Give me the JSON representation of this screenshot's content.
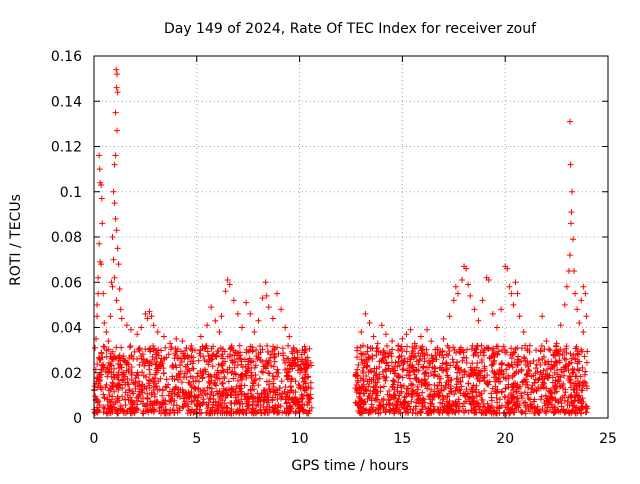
{
  "chart_data": {
    "type": "scatter",
    "title": "Day 149 of 2024, Rate Of TEC Index for receiver zouf",
    "xlabel": "GPS time / hours",
    "ylabel": "ROTI / TECUs",
    "xlim": [
      0,
      25
    ],
    "ylim": [
      0,
      0.16
    ],
    "x_ticks": [
      0,
      5,
      10,
      15,
      20,
      25
    ],
    "y_ticks": [
      0,
      0.02,
      0.04,
      0.06,
      0.08,
      0.1,
      0.12,
      0.14,
      0.16
    ],
    "x_tick_labels": [
      "0",
      "5",
      "10",
      "15",
      "20",
      "25"
    ],
    "y_tick_labels": [
      "0",
      "0.02",
      "0.04",
      "0.06",
      "0.08",
      "0.1",
      "0.12",
      "0.14",
      "0.16"
    ],
    "grid": true,
    "marker": "+",
    "color": "#ff0000",
    "series": [
      {
        "name": "ROTI",
        "points": [
          [
            0.05,
            0.031
          ],
          [
            0.1,
            0.035
          ],
          [
            0.15,
            0.045
          ],
          [
            0.2,
            0.055
          ],
          [
            0.25,
            0.116
          ],
          [
            0.28,
            0.11
          ],
          [
            0.3,
            0.104
          ],
          [
            0.35,
            0.103
          ],
          [
            0.38,
            0.097
          ],
          [
            0.4,
            0.086
          ],
          [
            0.25,
            0.077
          ],
          [
            0.3,
            0.069
          ],
          [
            0.35,
            0.068
          ],
          [
            0.2,
            0.062
          ],
          [
            0.45,
            0.055
          ],
          [
            0.15,
            0.05
          ],
          [
            0.5,
            0.042
          ],
          [
            0.6,
            0.038
          ],
          [
            0.7,
            0.034
          ],
          [
            0.8,
            0.045
          ],
          [
            0.85,
            0.06
          ],
          [
            0.9,
            0.08
          ],
          [
            0.95,
            0.1
          ],
          [
            1.0,
            0.112
          ],
          [
            1.05,
            0.116
          ],
          [
            1.08,
            0.154
          ],
          [
            1.12,
            0.152
          ],
          [
            1.1,
            0.146
          ],
          [
            1.15,
            0.144
          ],
          [
            1.05,
            0.135
          ],
          [
            1.12,
            0.127
          ],
          [
            1.0,
            0.095
          ],
          [
            1.05,
            0.088
          ],
          [
            1.1,
            0.083
          ],
          [
            1.15,
            0.075
          ],
          [
            1.2,
            0.068
          ],
          [
            1.0,
            0.062
          ],
          [
            1.25,
            0.057
          ],
          [
            1.1,
            0.052
          ],
          [
            1.3,
            0.048
          ],
          [
            1.35,
            0.044
          ],
          [
            0.9,
            0.058
          ],
          [
            0.95,
            0.07
          ],
          [
            1.6,
            0.041
          ],
          [
            1.8,
            0.039
          ],
          [
            2.1,
            0.037
          ],
          [
            2.3,
            0.04
          ],
          [
            2.5,
            0.046
          ],
          [
            2.6,
            0.044
          ],
          [
            2.7,
            0.047
          ],
          [
            2.8,
            0.045
          ],
          [
            2.9,
            0.041
          ],
          [
            3.1,
            0.038
          ],
          [
            3.4,
            0.036
          ],
          [
            3.7,
            0.033
          ],
          [
            4.0,
            0.035
          ],
          [
            4.3,
            0.034
          ],
          [
            4.5,
            0.031
          ],
          [
            4.8,
            0.03
          ],
          [
            5.2,
            0.036
          ],
          [
            5.5,
            0.041
          ],
          [
            5.7,
            0.049
          ],
          [
            5.9,
            0.043
          ],
          [
            6.1,
            0.038
          ],
          [
            6.2,
            0.045
          ],
          [
            6.4,
            0.056
          ],
          [
            6.5,
            0.061
          ],
          [
            6.6,
            0.059
          ],
          [
            6.8,
            0.052
          ],
          [
            7.0,
            0.046
          ],
          [
            7.2,
            0.04
          ],
          [
            7.4,
            0.051
          ],
          [
            7.6,
            0.046
          ],
          [
            7.8,
            0.038
          ],
          [
            8.0,
            0.043
          ],
          [
            8.2,
            0.053
          ],
          [
            8.35,
            0.06
          ],
          [
            8.4,
            0.054
          ],
          [
            8.5,
            0.049
          ],
          [
            8.7,
            0.044
          ],
          [
            8.9,
            0.055
          ],
          [
            9.1,
            0.048
          ],
          [
            9.3,
            0.04
          ],
          [
            9.5,
            0.036
          ],
          [
            9.7,
            0.031
          ],
          [
            9.9,
            0.029
          ],
          [
            10.1,
            0.028
          ],
          [
            10.3,
            0.026
          ],
          [
            12.8,
            0.031
          ],
          [
            13.0,
            0.038
          ],
          [
            13.2,
            0.046
          ],
          [
            13.4,
            0.042
          ],
          [
            13.6,
            0.036
          ],
          [
            13.8,
            0.033
          ],
          [
            14.0,
            0.041
          ],
          [
            14.2,
            0.037
          ],
          [
            14.5,
            0.034
          ],
          [
            14.8,
            0.032
          ],
          [
            15.0,
            0.035
          ],
          [
            15.2,
            0.037
          ],
          [
            15.4,
            0.039
          ],
          [
            15.6,
            0.033
          ],
          [
            15.9,
            0.036
          ],
          [
            16.2,
            0.039
          ],
          [
            16.4,
            0.034
          ],
          [
            16.7,
            0.031
          ],
          [
            17.0,
            0.035
          ],
          [
            17.3,
            0.045
          ],
          [
            17.5,
            0.052
          ],
          [
            17.6,
            0.058
          ],
          [
            17.7,
            0.055
          ],
          [
            17.9,
            0.061
          ],
          [
            18.0,
            0.067
          ],
          [
            18.1,
            0.066
          ],
          [
            18.2,
            0.059
          ],
          [
            18.3,
            0.054
          ],
          [
            18.5,
            0.048
          ],
          [
            18.7,
            0.043
          ],
          [
            18.9,
            0.052
          ],
          [
            19.1,
            0.062
          ],
          [
            19.2,
            0.061
          ],
          [
            19.4,
            0.046
          ],
          [
            19.6,
            0.04
          ],
          [
            19.8,
            0.048
          ],
          [
            20.0,
            0.067
          ],
          [
            20.1,
            0.066
          ],
          [
            20.2,
            0.058
          ],
          [
            20.3,
            0.055
          ],
          [
            20.4,
            0.05
          ],
          [
            20.5,
            0.06
          ],
          [
            20.6,
            0.055
          ],
          [
            20.7,
            0.045
          ],
          [
            20.9,
            0.038
          ],
          [
            21.2,
            0.032
          ],
          [
            21.5,
            0.03
          ],
          [
            21.8,
            0.045
          ],
          [
            22.0,
            0.034
          ],
          [
            22.5,
            0.033
          ],
          [
            22.7,
            0.041
          ],
          [
            22.9,
            0.05
          ],
          [
            23.0,
            0.058
          ],
          [
            23.1,
            0.065
          ],
          [
            23.15,
            0.072
          ],
          [
            23.2,
            0.086
          ],
          [
            23.22,
            0.091
          ],
          [
            23.25,
            0.1
          ],
          [
            23.18,
            0.112
          ],
          [
            23.15,
            0.131
          ],
          [
            23.3,
            0.079
          ],
          [
            23.35,
            0.065
          ],
          [
            23.4,
            0.055
          ],
          [
            23.5,
            0.048
          ],
          [
            23.6,
            0.042
          ],
          [
            23.7,
            0.052
          ],
          [
            23.8,
            0.058
          ],
          [
            23.9,
            0.055
          ],
          [
            23.95,
            0.045
          ],
          [
            23.8,
            0.038
          ]
        ],
        "dense_band": {
          "segments": [
            [
              0.0,
              10.6
            ],
            [
              12.7,
              24.0
            ]
          ],
          "base_low": 0.002,
          "base_high": 0.032,
          "count": 2600
        }
      }
    ]
  }
}
